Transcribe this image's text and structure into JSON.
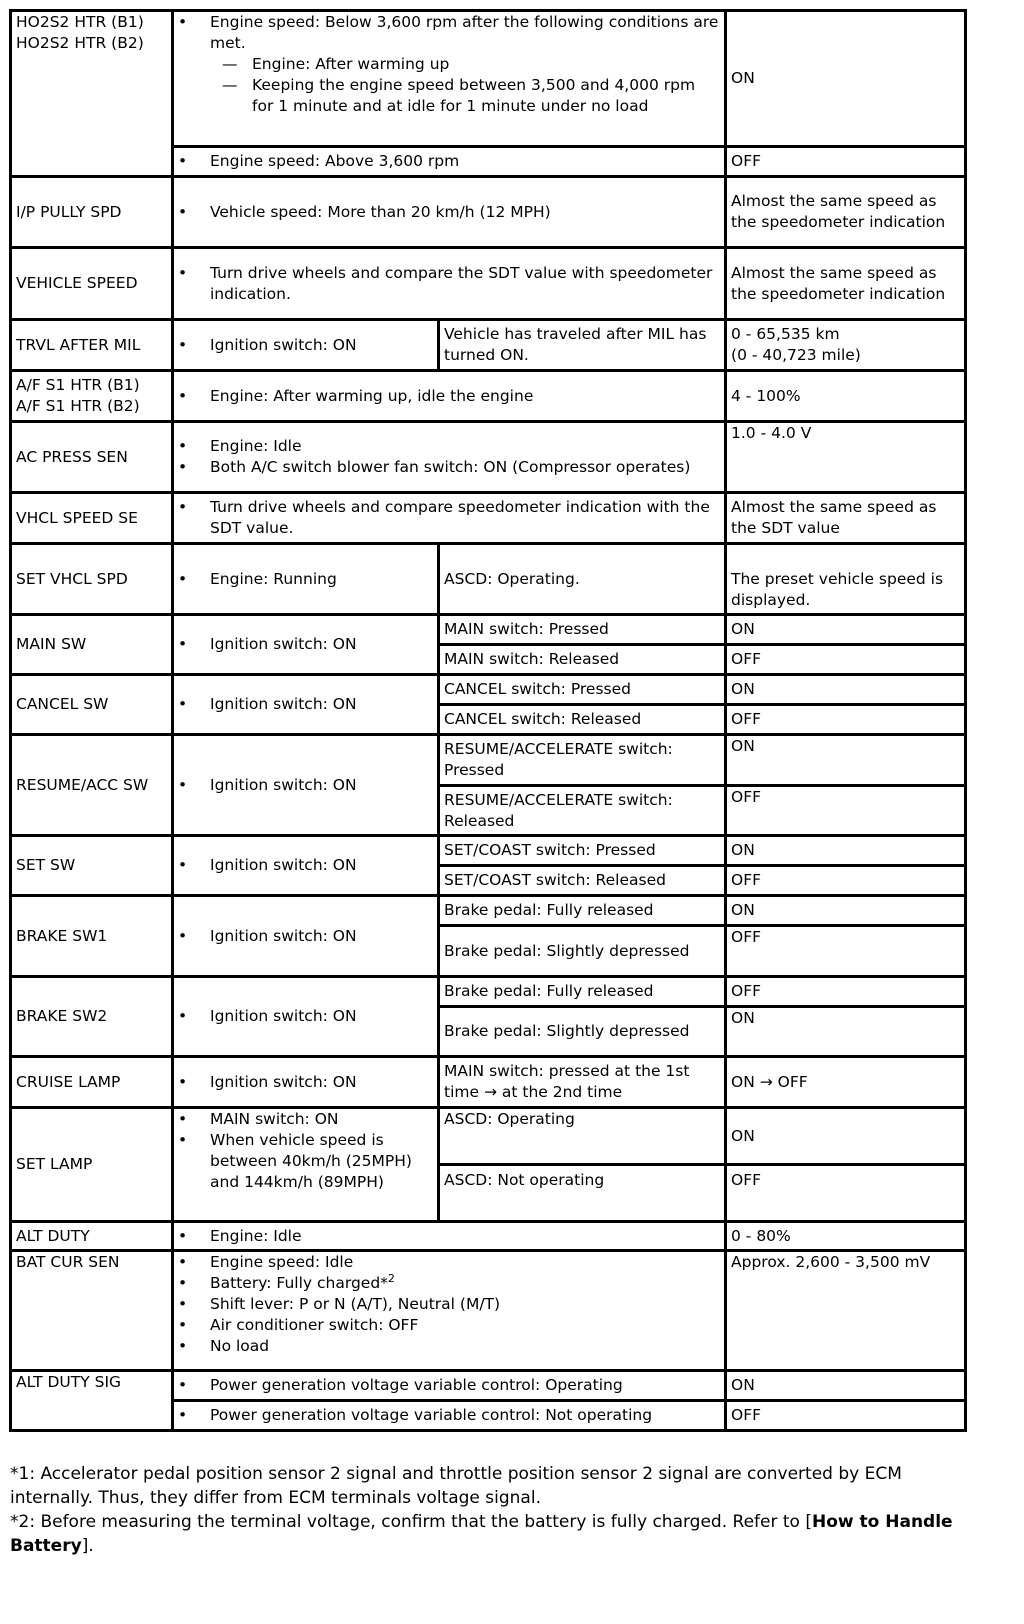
{
  "rows": {
    "ho2s2": {
      "item": [
        "HO2S2 HTR (B1)",
        "HO2S2 HTR (B2)"
      ],
      "cond_on": "Engine speed: Below 3,600 rpm after the following conditions are met.",
      "sub": [
        "Engine: After warming up",
        "Keeping the engine speed between 3,500 and 4,000 rpm for 1 minute and at idle for 1 minute under no load"
      ],
      "val_on": "ON",
      "cond_off": "Engine speed: Above 3,600 rpm",
      "val_off": "OFF"
    },
    "ip": {
      "item": "I/P PULLY SPD",
      "cond": "Vehicle speed: More than 20 km/h (12 MPH)",
      "val": "Almost the same speed as the speedometer indication"
    },
    "vs": {
      "item": "VEHICLE SPEED",
      "cond": "Turn drive wheels and compare the SDT value with speedometer indication.",
      "val": "Almost the same speed as the speedometer indication"
    },
    "trvl": {
      "item": "TRVL AFTER MIL",
      "cond": "Ignition switch: ON",
      "cond2": "Vehicle has traveled after MIL has turned ON.",
      "val": [
        "0 - 65,535 km",
        "(0 - 40,723 mile)"
      ]
    },
    "af": {
      "item": [
        "A/F S1 HTR (B1)",
        "A/F S1 HTR (B2)"
      ],
      "cond": "Engine: After warming up, idle the engine",
      "val": "4 - 100%"
    },
    "ac": {
      "item": "AC PRESS SEN",
      "cond": [
        "Engine: Idle",
        "Both A/C switch blower fan switch: ON (Compressor operates)"
      ],
      "val": "1.0 - 4.0 V"
    },
    "vss": {
      "item": "VHCL SPEED SE",
      "cond": "Turn drive wheels and compare speedometer indication with the SDT value.",
      "val": "Almost the same speed as the SDT value"
    },
    "setv": {
      "item": "SET VHCL SPD",
      "cond": "Engine: Running",
      "cond2": "ASCD: Operating.",
      "val": "The preset vehicle speed is displayed."
    },
    "main": {
      "item": "MAIN SW",
      "cond": "Ignition switch: ON",
      "c1": "MAIN switch: Pressed",
      "v1": "ON",
      "c2": "MAIN switch: Released",
      "v2": "OFF"
    },
    "cancel": {
      "item": "CANCEL SW",
      "cond": "Ignition switch: ON",
      "c1": "CANCEL switch: Pressed",
      "v1": "ON",
      "c2": "CANCEL switch: Released",
      "v2": "OFF"
    },
    "resume": {
      "item": "RESUME/ACC SW",
      "cond": "Ignition switch: ON",
      "c1": "RESUME/ACCELERATE switch: Pressed",
      "v1": "ON",
      "c2": "RESUME/ACCELERATE switch: Released",
      "v2": "OFF"
    },
    "set": {
      "item": "SET SW",
      "cond": "Ignition switch: ON",
      "c1": "SET/COAST switch: Pressed",
      "v1": "ON",
      "c2": "SET/COAST switch: Released",
      "v2": "OFF"
    },
    "brake1": {
      "item": "BRAKE SW1",
      "cond": "Ignition switch: ON",
      "c1": "Brake pedal: Fully released",
      "v1": "ON",
      "c2": "Brake pedal: Slightly depressed",
      "v2": "OFF"
    },
    "brake2": {
      "item": "BRAKE SW2",
      "cond": "Ignition switch: ON",
      "c1": "Brake pedal: Fully released",
      "v1": "OFF",
      "c2": "Brake pedal: Slightly depressed",
      "v2": "ON"
    },
    "cruise": {
      "item": "CRUISE LAMP",
      "cond": "Ignition switch: ON",
      "cond2": "MAIN switch: pressed at the 1st time → at the 2nd time",
      "val": "ON → OFF"
    },
    "setlamp": {
      "item": "SET LAMP",
      "cond": [
        "MAIN switch: ON",
        "When vehicle speed is between 40km/h (25MPH) and 144km/h (89MPH)"
      ],
      "c1": "ASCD: Operating",
      "v1": "ON",
      "c2": "ASCD: Not operating",
      "v2": "OFF"
    },
    "altduty": {
      "item": "ALT DUTY",
      "cond": "Engine: Idle",
      "val": "0 - 80%"
    },
    "bat": {
      "item": "BAT CUR SEN",
      "cond": [
        "Engine speed: Idle",
        "Battery: Fully charged*",
        "Shift lever: P or N (A/T), Neutral (M/T)",
        "Air conditioner switch: OFF",
        "No load"
      ],
      "sup": "2",
      "val": "Approx. 2,600 - 3,500 mV"
    },
    "altsig": {
      "item": "ALT DUTY SIG",
      "c1": "Power generation voltage variable control: Operating",
      "v1": "ON",
      "c2": "Power generation voltage variable control: Not operating",
      "v2": "OFF"
    }
  },
  "footnotes": {
    "n1": "*1: Accelerator pedal position sensor 2 signal and throttle position sensor 2 signal are converted by ECM internally. Thus, they differ from ECM terminals voltage signal.",
    "n2": "*2: Before measuring the terminal voltage, confirm that the battery is fully charged. Refer to [",
    "link": "How to Handle Battery",
    "n2end": "]."
  }
}
